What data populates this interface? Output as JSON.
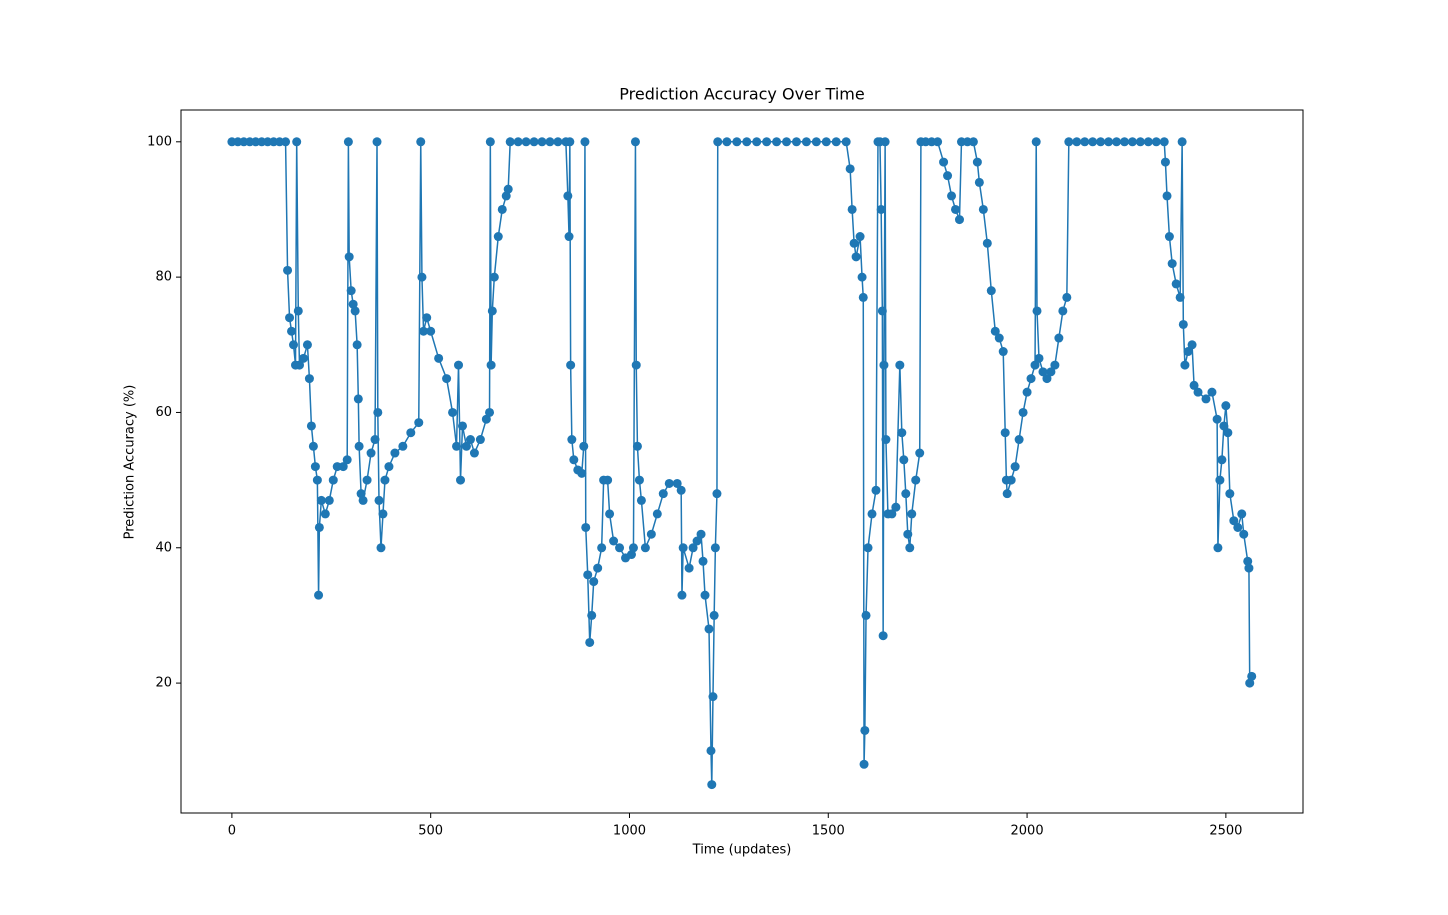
{
  "chart_data": {
    "type": "line",
    "title": "Prediction Accuracy Over Time",
    "x_label": "Time (updates)",
    "y_label": "Prediction Accuracy (%)",
    "color": "#1f77b4",
    "x": [
      0,
      15,
      30,
      45,
      60,
      75,
      90,
      105,
      120,
      135,
      140,
      145,
      150,
      155,
      160,
      163,
      167,
      170,
      180,
      190,
      195,
      200,
      205,
      210,
      215,
      218,
      220,
      225,
      235,
      245,
      255,
      265,
      280,
      290,
      293,
      295,
      300,
      305,
      310,
      315,
      318,
      320,
      325,
      330,
      340,
      350,
      360,
      365,
      367,
      370,
      375,
      380,
      385,
      395,
      410,
      430,
      450,
      470,
      475,
      478,
      482,
      490,
      500,
      520,
      540,
      555,
      565,
      570,
      575,
      580,
      590,
      600,
      610,
      625,
      640,
      648,
      650,
      652,
      655,
      660,
      670,
      680,
      690,
      695,
      700,
      720,
      740,
      760,
      780,
      800,
      820,
      840,
      845,
      848,
      850,
      852,
      855,
      860,
      870,
      880,
      885,
      888,
      890,
      895,
      900,
      905,
      910,
      920,
      930,
      935,
      945,
      950,
      960,
      975,
      990,
      1005,
      1010,
      1015,
      1017,
      1020,
      1025,
      1030,
      1040,
      1055,
      1070,
      1085,
      1100,
      1120,
      1130,
      1132,
      1135,
      1150,
      1160,
      1170,
      1180,
      1185,
      1190,
      1200,
      1205,
      1207,
      1210,
      1213,
      1216,
      1220,
      1222,
      1245,
      1270,
      1295,
      1320,
      1345,
      1370,
      1395,
      1420,
      1445,
      1470,
      1495,
      1520,
      1545,
      1555,
      1560,
      1565,
      1570,
      1580,
      1585,
      1588,
      1590,
      1592,
      1595,
      1600,
      1610,
      1620,
      1625,
      1630,
      1633,
      1636,
      1638,
      1640,
      1643,
      1645,
      1650,
      1660,
      1670,
      1680,
      1685,
      1690,
      1695,
      1700,
      1705,
      1710,
      1720,
      1730,
      1733,
      1745,
      1760,
      1775,
      1790,
      1800,
      1810,
      1820,
      1830,
      1835,
      1850,
      1865,
      1875,
      1880,
      1890,
      1900,
      1910,
      1920,
      1930,
      1940,
      1945,
      1948,
      1950,
      1960,
      1970,
      1980,
      1990,
      2000,
      2010,
      2020,
      2023,
      2025,
      2030,
      2040,
      2050,
      2060,
      2070,
      2080,
      2090,
      2100,
      2105,
      2125,
      2145,
      2165,
      2185,
      2205,
      2225,
      2245,
      2265,
      2285,
      2305,
      2325,
      2345,
      2348,
      2352,
      2358,
      2365,
      2375,
      2385,
      2390,
      2393,
      2397,
      2405,
      2415,
      2420,
      2430,
      2450,
      2465,
      2478,
      2480,
      2485,
      2490,
      2495,
      2500,
      2505,
      2510,
      2520,
      2530,
      2540,
      2545,
      2555,
      2558,
      2560,
      2565
    ],
    "values": [
      100,
      100,
      100,
      100,
      100,
      100,
      100,
      100,
      100,
      100,
      81,
      74,
      72,
      70,
      67,
      100,
      75,
      67,
      68,
      70,
      65,
      58,
      55,
      52,
      50,
      33,
      43,
      47,
      45,
      47,
      50,
      52,
      52,
      53,
      100,
      83,
      78,
      76,
      75,
      70,
      62,
      55,
      48,
      47,
      50,
      54,
      56,
      100,
      60,
      47,
      40,
      45,
      50,
      52,
      54,
      55,
      57,
      58.5,
      100,
      80,
      72,
      74,
      72,
      68,
      65,
      60,
      55,
      67,
      50,
      58,
      55,
      56,
      54,
      56,
      59,
      60,
      100,
      67,
      75,
      80,
      86,
      90,
      92,
      93,
      100,
      100,
      100,
      100,
      100,
      100,
      100,
      100,
      92,
      86,
      100,
      67,
      56,
      53,
      51.5,
      51,
      55,
      100,
      43,
      36,
      26,
      30,
      35,
      37,
      40,
      50,
      50,
      45,
      41,
      40,
      38.5,
      39,
      40,
      100,
      67,
      55,
      50,
      47,
      40,
      42,
      45,
      48,
      49.5,
      49.5,
      48.5,
      33,
      40,
      37,
      40,
      41,
      42,
      38,
      33,
      28,
      10,
      5,
      18,
      30,
      40,
      48,
      100,
      100,
      100,
      100,
      100,
      100,
      100,
      100,
      100,
      100,
      100,
      100,
      100,
      100,
      96,
      90,
      85,
      83,
      86,
      80,
      77,
      8,
      13,
      30,
      40,
      45,
      48.5,
      100,
      100,
      90,
      75,
      27,
      67,
      100,
      56,
      45,
      45,
      46,
      67,
      57,
      53,
      48,
      42,
      40,
      45,
      50,
      54,
      100,
      100,
      100,
      100,
      97,
      95,
      92,
      90,
      88.5,
      100,
      100,
      100,
      97,
      94,
      90,
      85,
      78,
      72,
      71,
      69,
      57,
      50,
      48,
      50,
      52,
      56,
      60,
      63,
      65,
      67,
      100,
      75,
      68,
      66,
      65,
      66,
      67,
      71,
      75,
      77,
      100,
      100,
      100,
      100,
      100,
      100,
      100,
      100,
      100,
      100,
      100,
      100,
      100,
      97,
      92,
      86,
      82,
      79,
      77,
      100,
      73,
      67,
      69,
      70,
      64,
      63,
      62,
      63,
      59,
      40,
      50,
      53,
      58,
      61,
      57,
      48,
      44,
      43,
      45,
      42,
      38,
      37,
      20,
      21
    ],
    "xlim": [
      -128,
      2694
    ],
    "ylim": [
      0.8,
      104.7
    ],
    "xticks": [
      0,
      500,
      1000,
      1500,
      2000,
      2500
    ],
    "yticks": [
      20,
      40,
      60,
      80,
      100
    ]
  }
}
